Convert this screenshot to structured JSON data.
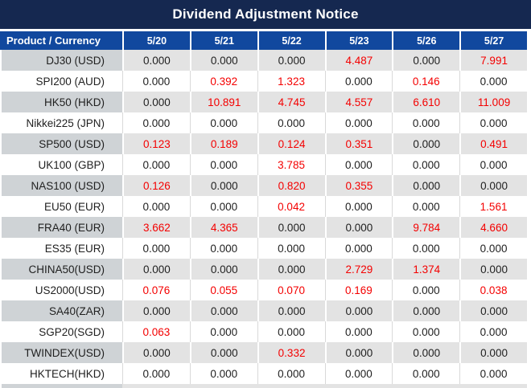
{
  "title": "Dividend Adjustment Notice",
  "colors": {
    "title_bg": "#152850",
    "header_bg": "#11489e",
    "stripe_label_bg": "#cfd3d6",
    "stripe_value_bg": "#e3e3e3",
    "plain_line": "#d9d9d9",
    "red": "#f40000",
    "text": "#1f1f1f"
  },
  "table": {
    "header": {
      "product_label": "Product / Currency",
      "dates": [
        "5/20",
        "5/21",
        "5/22",
        "5/23",
        "5/26",
        "5/27"
      ]
    },
    "zero_value": "0.000",
    "rows": [
      {
        "product": "DJ30 (USD)",
        "values": [
          "0.000",
          "0.000",
          "0.000",
          "4.487",
          "0.000",
          "7.991"
        ]
      },
      {
        "product": "SPI200 (AUD)",
        "values": [
          "0.000",
          "0.392",
          "1.323",
          "0.000",
          "0.146",
          "0.000"
        ]
      },
      {
        "product": "HK50 (HKD)",
        "values": [
          "0.000",
          "10.891",
          "4.745",
          "4.557",
          "6.610",
          "11.009"
        ]
      },
      {
        "product": "Nikkei225 (JPN)",
        "values": [
          "0.000",
          "0.000",
          "0.000",
          "0.000",
          "0.000",
          "0.000"
        ]
      },
      {
        "product": "SP500 (USD)",
        "values": [
          "0.123",
          "0.189",
          "0.124",
          "0.351",
          "0.000",
          "0.491"
        ]
      },
      {
        "product": "UK100 (GBP)",
        "values": [
          "0.000",
          "0.000",
          "3.785",
          "0.000",
          "0.000",
          "0.000"
        ]
      },
      {
        "product": "NAS100 (USD)",
        "values": [
          "0.126",
          "0.000",
          "0.820",
          "0.355",
          "0.000",
          "0.000"
        ]
      },
      {
        "product": "EU50 (EUR)",
        "values": [
          "0.000",
          "0.000",
          "0.042",
          "0.000",
          "0.000",
          "1.561"
        ]
      },
      {
        "product": "FRA40 (EUR)",
        "values": [
          "3.662",
          "4.365",
          "0.000",
          "0.000",
          "9.784",
          "4.660"
        ]
      },
      {
        "product": "ES35 (EUR)",
        "values": [
          "0.000",
          "0.000",
          "0.000",
          "0.000",
          "0.000",
          "0.000"
        ]
      },
      {
        "product": "CHINA50(USD)",
        "values": [
          "0.000",
          "0.000",
          "0.000",
          "2.729",
          "1.374",
          "0.000"
        ]
      },
      {
        "product": "US2000(USD)",
        "values": [
          "0.076",
          "0.055",
          "0.070",
          "0.169",
          "0.000",
          "0.038"
        ]
      },
      {
        "product": "SA40(ZAR)",
        "values": [
          "0.000",
          "0.000",
          "0.000",
          "0.000",
          "0.000",
          "0.000"
        ]
      },
      {
        "product": "SGP20(SGD)",
        "values": [
          "0.063",
          "0.000",
          "0.000",
          "0.000",
          "0.000",
          "0.000"
        ]
      },
      {
        "product": "TWINDEX(USD)",
        "values": [
          "0.000",
          "0.000",
          "0.332",
          "0.000",
          "0.000",
          "0.000"
        ]
      },
      {
        "product": "HKTECH(HKD)",
        "values": [
          "0.000",
          "0.000",
          "0.000",
          "0.000",
          "0.000",
          "0.000"
        ]
      }
    ]
  }
}
